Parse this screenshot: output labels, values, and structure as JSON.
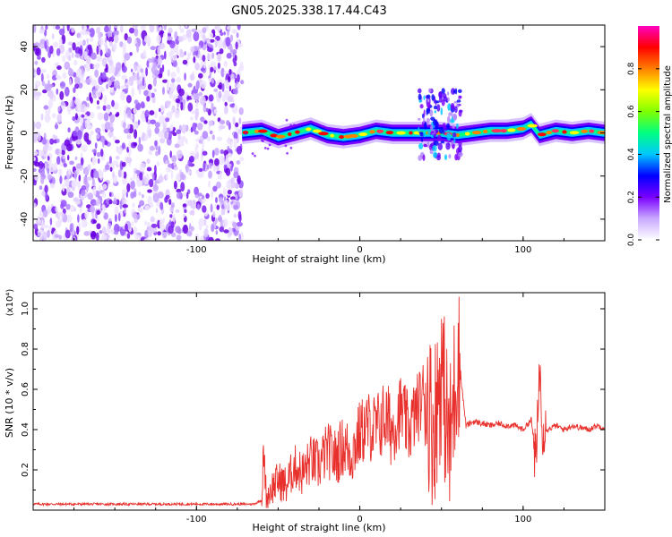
{
  "title": "GN05.2025.338.17.44.C43",
  "chart_data": [
    {
      "type": "heatmap",
      "xlabel": "Height of straight line (km)",
      "ylabel": "Frequency (Hz)",
      "xlim": [
        -200,
        150
      ],
      "ylim": [
        -50,
        50
      ],
      "x_ticks": [
        -100,
        0,
        100
      ],
      "x_tick_labels": [
        "-100",
        "0",
        "100"
      ],
      "y_ticks": [
        -40,
        -20,
        0,
        20,
        40
      ],
      "y_tick_labels": [
        "-40",
        "-20",
        "0",
        "20",
        "40"
      ],
      "noise_region_x": [
        -200,
        -72
      ],
      "ridge": {
        "x": [
          -72,
          -60,
          -50,
          -40,
          -30,
          -20,
          -10,
          0,
          10,
          20,
          30,
          40,
          50,
          60,
          70,
          80,
          90,
          100,
          105,
          110,
          120,
          130,
          140,
          150
        ],
        "y": [
          0,
          1,
          -2,
          0,
          2,
          -1,
          -2,
          -1,
          1,
          0,
          0,
          0,
          0,
          -1,
          0,
          1,
          1,
          2,
          4,
          -1,
          1,
          0,
          1,
          0
        ]
      },
      "burst": {
        "x_range": [
          36,
          62
        ],
        "y_range": [
          -12,
          20
        ]
      },
      "colorbar": {
        "label": "Normalized spectral amplitude",
        "range": [
          0,
          1
        ],
        "ticks": [
          0,
          0.2,
          0.4,
          0.6,
          0.8
        ],
        "tick_labels": [
          "0.0",
          "0.2",
          "0.4",
          "0.6",
          "0.8"
        ],
        "colors": [
          "#ffffff",
          "#c9a8ff",
          "#7a00ff",
          "#0000ff",
          "#00c8ff",
          "#00ff80",
          "#80ff00",
          "#ffff00",
          "#ff8000",
          "#ff0000",
          "#ff00c0"
        ]
      }
    },
    {
      "type": "line",
      "xlabel": "Height of straight line (km)",
      "ylabel": "SNR (10 * v/v)",
      "y_multiplier_label": "(x10⁴)",
      "xlim": [
        -200,
        150
      ],
      "ylim": [
        0,
        1.08
      ],
      "x_ticks": [
        -100,
        0,
        100
      ],
      "x_tick_labels": [
        "-100",
        "0",
        "100"
      ],
      "y_ticks": [
        0.2,
        0.4,
        0.6,
        0.8,
        1.0
      ],
      "y_tick_labels": [
        "0.2",
        "0.4",
        "0.6",
        "0.8",
        "1.0"
      ],
      "series": [
        {
          "color": "#e8302c",
          "x": [
            -200,
            -180,
            -160,
            -140,
            -120,
            -100,
            -80,
            -65,
            -60,
            -59,
            -57,
            -55,
            -50,
            -45,
            -40,
            -35,
            -30,
            -25,
            -20,
            -15,
            -10,
            -5,
            0,
            5,
            10,
            15,
            20,
            25,
            30,
            35,
            40,
            45,
            50,
            55,
            60,
            65,
            70,
            75,
            80,
            85,
            90,
            95,
            100,
            105,
            108,
            110,
            112,
            115,
            120,
            125,
            130,
            135,
            140,
            145,
            150
          ],
          "y": [
            0.03,
            0.03,
            0.03,
            0.03,
            0.03,
            0.03,
            0.03,
            0.03,
            0.05,
            0.29,
            0.05,
            0.1,
            0.15,
            0.12,
            0.22,
            0.18,
            0.25,
            0.22,
            0.3,
            0.26,
            0.32,
            0.28,
            0.38,
            0.42,
            0.4,
            0.46,
            0.4,
            0.5,
            0.4,
            0.5,
            0.6,
            0.4,
            0.7,
            0.3,
            0.8,
            0.42,
            0.44,
            0.43,
            0.42,
            0.43,
            0.42,
            0.42,
            0.4,
            0.45,
            0.22,
            0.72,
            0.42,
            0.4,
            0.42,
            0.4,
            0.42,
            0.41,
            0.4,
            0.42,
            0.41
          ]
        }
      ]
    }
  ]
}
